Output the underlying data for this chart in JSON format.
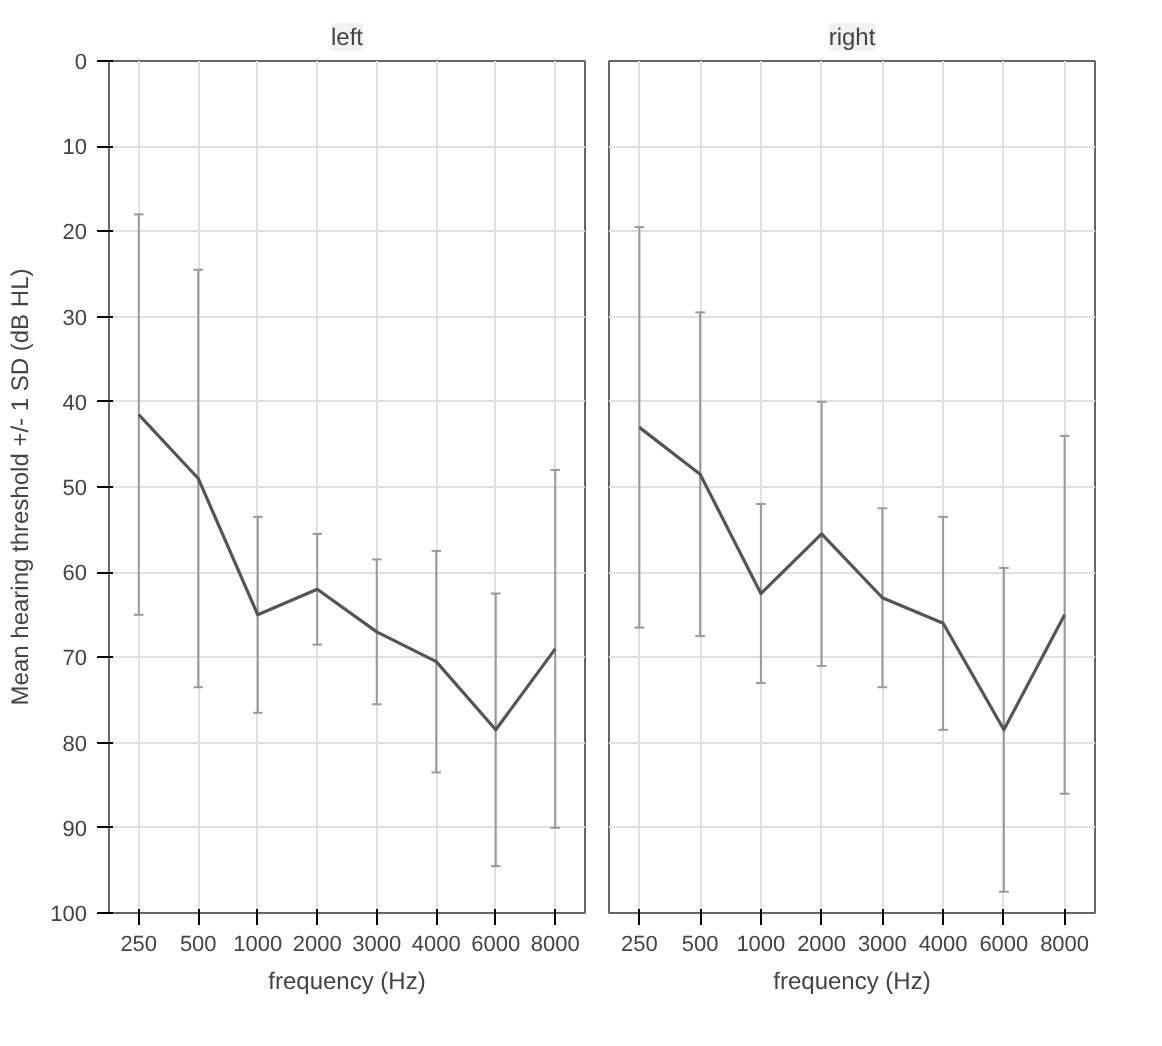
{
  "chart_data": [
    {
      "type": "line",
      "title": "left",
      "xlabel": "frequency (Hz)",
      "ylabel": "Mean hearing threshold +/- 1 SD (dB HL)",
      "categories": [
        "250",
        "500",
        "1000",
        "2000",
        "3000",
        "4000",
        "6000",
        "8000"
      ],
      "series": [
        {
          "color": "#555555",
          "values": [
            41.5,
            49,
            65,
            62,
            67,
            70.5,
            78.5,
            69
          ],
          "errors": [
            [
              18,
              65
            ],
            [
              24.5,
              73.5
            ],
            [
              53.5,
              76.5
            ],
            [
              55.5,
              68.5
            ],
            [
              58.5,
              75.5
            ],
            [
              57.5,
              83.5
            ],
            [
              62.5,
              94.5
            ],
            [
              48,
              90
            ]
          ]
        }
      ],
      "ylim": [
        100,
        0
      ],
      "yticks": [
        0,
        10,
        20,
        30,
        40,
        50,
        60,
        70,
        80,
        90,
        100
      ],
      "grid": true,
      "marker": "none",
      "line_style": "solid"
    },
    {
      "type": "line",
      "title": "right",
      "xlabel": "frequency (Hz)",
      "categories": [
        "250",
        "500",
        "1000",
        "2000",
        "3000",
        "4000",
        "6000",
        "8000"
      ],
      "series": [
        {
          "color": "#555555",
          "values": [
            43,
            48.5,
            62.5,
            55.5,
            63,
            66,
            78.5,
            65
          ],
          "errors": [
            [
              19.5,
              66.5
            ],
            [
              29.5,
              67.5
            ],
            [
              52,
              73
            ],
            [
              40,
              71
            ],
            [
              52.5,
              73.5
            ],
            [
              53.5,
              78.5
            ],
            [
              59.5,
              97.5
            ],
            [
              44,
              86
            ]
          ]
        }
      ],
      "ylim": [
        100,
        0
      ],
      "yticks": [
        0,
        10,
        20,
        30,
        40,
        50,
        60,
        70,
        80,
        90,
        100
      ],
      "grid": true,
      "marker": "none",
      "line_style": "solid",
      "tick_labels": "x"
    }
  ]
}
